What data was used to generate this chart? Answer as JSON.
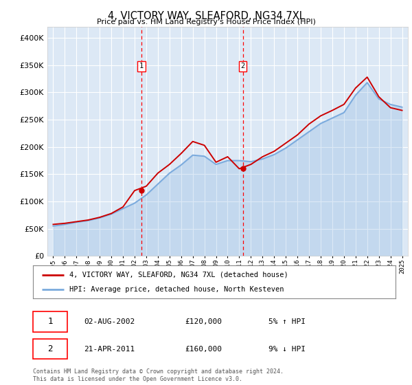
{
  "title": "4, VICTORY WAY, SLEAFORD, NG34 7XL",
  "subtitle": "Price paid vs. HM Land Registry's House Price Index (HPI)",
  "bg_color": "#e8f0f8",
  "plot_bg_color": "#dce8f5",
  "outer_bg": "#ffffff",
  "red_line_color": "#cc0000",
  "blue_line_color": "#7aaadd",
  "legend_label_red": "4, VICTORY WAY, SLEAFORD, NG34 7XL (detached house)",
  "legend_label_blue": "HPI: Average price, detached house, North Kesteven",
  "annotation1": {
    "label": "1",
    "date": "02-AUG-2002",
    "price": "£120,000",
    "pct": "5% ↑ HPI"
  },
  "annotation2": {
    "label": "2",
    "date": "21-APR-2011",
    "price": "£160,000",
    "pct": "9% ↓ HPI"
  },
  "footer": "Contains HM Land Registry data © Crown copyright and database right 2024.\nThis data is licensed under the Open Government Licence v3.0.",
  "years": [
    1995,
    1996,
    1997,
    1998,
    1999,
    2000,
    2001,
    2002,
    2003,
    2004,
    2005,
    2006,
    2007,
    2008,
    2009,
    2010,
    2011,
    2012,
    2013,
    2014,
    2015,
    2016,
    2017,
    2018,
    2019,
    2020,
    2021,
    2022,
    2023,
    2024,
    2025
  ],
  "hpi_values": [
    55000,
    58000,
    62000,
    65000,
    70000,
    77000,
    87000,
    97000,
    112000,
    132000,
    152000,
    167000,
    185000,
    183000,
    168000,
    175000,
    175000,
    173000,
    178000,
    186000,
    198000,
    213000,
    228000,
    243000,
    253000,
    263000,
    295000,
    318000,
    288000,
    278000,
    273000
  ],
  "red_values": [
    58000,
    60000,
    63000,
    66000,
    71000,
    78000,
    90000,
    120000,
    128000,
    152000,
    168000,
    188000,
    210000,
    203000,
    172000,
    182000,
    160000,
    168000,
    182000,
    192000,
    207000,
    222000,
    242000,
    257000,
    267000,
    278000,
    308000,
    328000,
    292000,
    272000,
    267000
  ],
  "marker1_x": 2002.6,
  "marker1_y": 120000,
  "marker2_x": 2011.3,
  "marker2_y": 160000,
  "ylim": [
    0,
    420000
  ],
  "yticks": [
    0,
    50000,
    100000,
    150000,
    200000,
    250000,
    300000,
    350000,
    400000
  ],
  "xlim": [
    1994.5,
    2025.5
  ]
}
